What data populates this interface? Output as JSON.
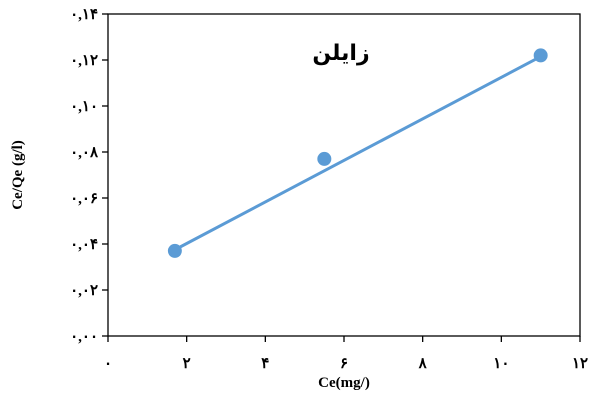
{
  "chart_data": {
    "type": "scatter",
    "title": "زایلن",
    "xlabel": "Ce(mg/)",
    "ylabel": "Ce/Qe (g/l)",
    "xlim": [
      0,
      12
    ],
    "ylim": [
      0,
      0.14
    ],
    "x_ticks": [
      0,
      2,
      4,
      6,
      8,
      10,
      12
    ],
    "y_ticks": [
      0,
      0.02,
      0.04,
      0.06,
      0.08,
      0.1,
      0.12,
      0.14
    ],
    "x_tick_labels": [
      "۰",
      "۲",
      "۴",
      "۶",
      "۸",
      "۱۰",
      "۱۲"
    ],
    "y_tick_labels": [
      "۰,۰۰",
      "۰,۰۲",
      "۰,۰۴",
      "۰,۰۶",
      "۰,۰۸",
      "۰,۱۰",
      "۰,۱۲",
      "۰,۱۴"
    ],
    "grid": false,
    "series": [
      {
        "points": [
          {
            "x": 1.7,
            "y": 0.037
          },
          {
            "x": 5.5,
            "y": 0.077
          },
          {
            "x": 11.0,
            "y": 0.122
          }
        ],
        "color": "#5b9bd5"
      }
    ],
    "trendline": {
      "type": "linear",
      "from": {
        "x": 1.7,
        "y": 0.0375
      },
      "to": {
        "x": 11.0,
        "y": 0.1215
      },
      "color": "#5b9bd5"
    }
  }
}
